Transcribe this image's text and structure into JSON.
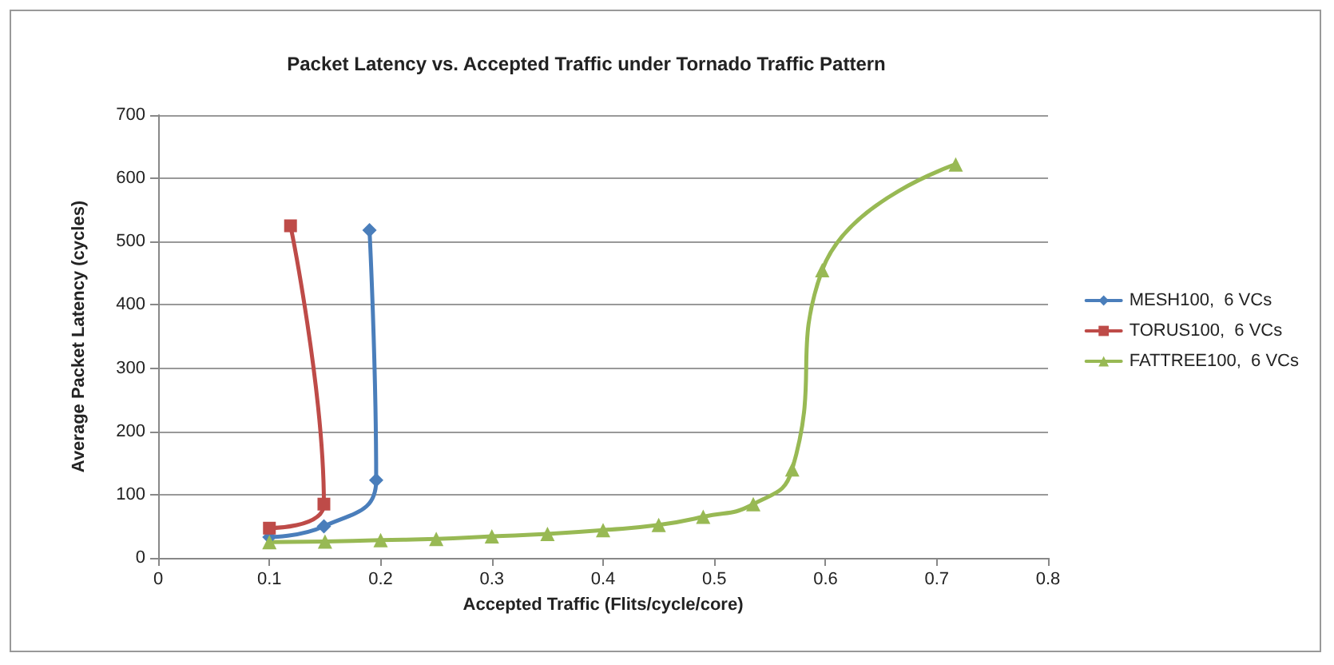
{
  "chart_data": {
    "type": "line",
    "title": "Packet Latency vs. Accepted Traffic under Tornado Traffic Pattern",
    "xlabel": "Accepted Traffic (Flits/cycle/core)",
    "ylabel": "Average Packet Latency (cycles)",
    "series": [
      {
        "name": "MESH100,  6 VCs",
        "color": "#4a7ebb",
        "marker": "diamond",
        "x": [
          0.1,
          0.149,
          0.196,
          0.19
        ],
        "values": [
          33,
          50,
          123,
          518
        ]
      },
      {
        "name": "TORUS100,  6 VCs",
        "color": "#be4b48",
        "marker": "square",
        "x": [
          0.1,
          0.149,
          0.119
        ],
        "values": [
          47,
          85,
          525
        ]
      },
      {
        "name": "FATTREE100,  6 VCs",
        "color": "#98b954",
        "marker": "triangle",
        "x": [
          0.1,
          0.15,
          0.2,
          0.25,
          0.3,
          0.35,
          0.4,
          0.45,
          0.49,
          0.535,
          0.57,
          0.597,
          0.717
        ],
        "values": [
          25,
          26,
          28,
          30,
          34,
          38,
          44,
          52,
          65,
          85,
          140,
          455,
          622
        ]
      }
    ],
    "xlim": [
      0,
      0.8
    ],
    "xticks": [
      0,
      0.1,
      0.2,
      0.3,
      0.4,
      0.5,
      0.6,
      0.7,
      0.8
    ],
    "ylim": [
      0,
      700
    ],
    "yticks": [
      0,
      100,
      200,
      300,
      400,
      500,
      600,
      700
    ],
    "grid": "y",
    "legend": "right"
  }
}
